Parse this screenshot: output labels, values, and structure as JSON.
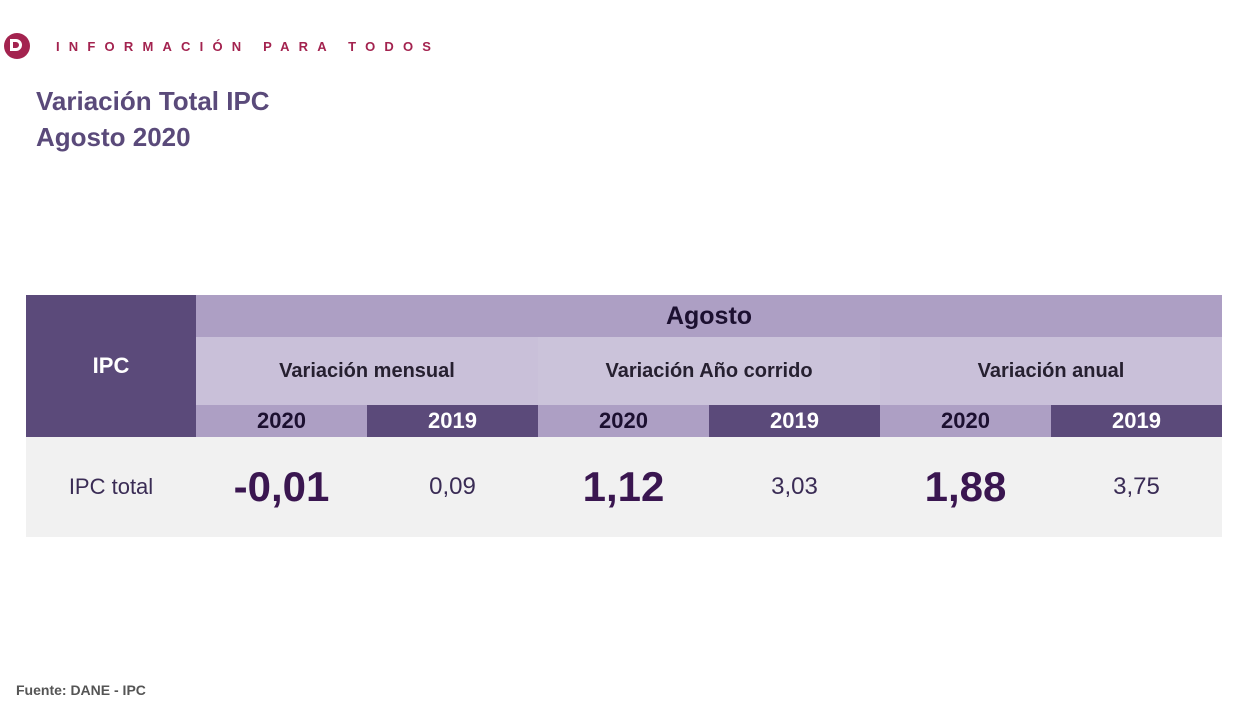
{
  "brand": {
    "tagline": "INFORMACIÓN PARA TODOS",
    "logo_icon": "dane-logo-icon",
    "color": "#a3234f"
  },
  "title": {
    "line1": "Variación Total IPC",
    "line2": "Agosto 2020"
  },
  "table": {
    "corner_header": "IPC",
    "period_header": "Agosto",
    "groups": [
      {
        "label": "Variación mensual",
        "years": [
          "2020",
          "2019"
        ]
      },
      {
        "label": "Variación Año corrido",
        "years": [
          "2020",
          "2019"
        ]
      },
      {
        "label": "Variación anual",
        "years": [
          "2020",
          "2019"
        ]
      }
    ],
    "rows": [
      {
        "label": "IPC total",
        "values": [
          "-0,01",
          "0,09",
          "1,12",
          "3,03",
          "1,88",
          "3,75"
        ]
      }
    ]
  },
  "source": "Fuente: DANE - IPC",
  "colors": {
    "dark_purple": "#5b4a7a",
    "mid_purple": "#ad9fc4",
    "light_purple": "#c9c0d9",
    "row_bg": "#f1f1f1"
  }
}
